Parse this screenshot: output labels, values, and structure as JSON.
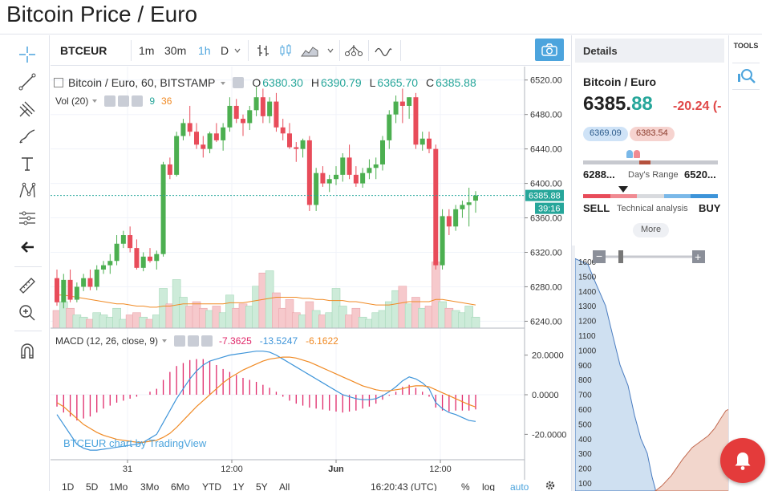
{
  "page": {
    "title": "Bitcoin Price / Euro"
  },
  "left_toolbar": {
    "icons": [
      "crosshair-icon",
      "trend-line-icon",
      "pitchfork-icon",
      "brush-icon",
      "text-icon",
      "pattern-icon",
      "measure-icon",
      "back-arrow-icon",
      "ruler-icon",
      "zoom-icon",
      "magnet-icon"
    ]
  },
  "toolbar": {
    "symbol": "BTCEUR",
    "intervals": [
      "1m",
      "30m",
      "1h",
      "D"
    ],
    "active_interval": "1h",
    "accent": "#4ca4dd"
  },
  "legend": {
    "title": "Bitcoin / Euro, 60, BITSTAMP",
    "o_label": "O",
    "o_value": "6380.30",
    "h_label": "H",
    "h_value": "6390.79",
    "l_label": "L",
    "l_value": "6365.70",
    "c_label": "C",
    "c_value": "6385.88",
    "vol_label": "Vol (20)",
    "vol_a": "9",
    "vol_b": "36",
    "macd_label": "MACD (12, 26, close, 9)",
    "macd_hist": "-7.3625",
    "macd_line": "-13.5247",
    "macd_signal": "-6.1622"
  },
  "price_axis": {
    "ticks": [
      "6520.00",
      "6480.00",
      "6440.00",
      "6400.00",
      "6360.00",
      "6320.00",
      "6280.00",
      "6240.00"
    ],
    "last_price": "6385.88",
    "countdown": "39:16",
    "macd_ticks": [
      "20.0000",
      "0.0000",
      "-20.0000"
    ]
  },
  "time_axis": {
    "labels": [
      "31",
      "12:00",
      "Jun",
      "12:00"
    ]
  },
  "watermark": "BTCEUR chart by TradingView",
  "range_bar": {
    "items": [
      "1D",
      "5D",
      "1Mo",
      "3Mo",
      "6Mo",
      "YTD",
      "1Y",
      "5Y",
      "All"
    ],
    "time": "16:20:43 (UTC)",
    "percent": "%",
    "log": "log",
    "auto": "auto"
  },
  "chart_data": {
    "type": "candlestick",
    "title": "Bitcoin / Euro, 60, BITSTAMP",
    "ylim": [
      6232,
      6530
    ],
    "up_color": "#4caf50",
    "down_color": "#e84c5a",
    "candles": [
      [
        6290,
        6300,
        6258,
        6262
      ],
      [
        6262,
        6295,
        6255,
        6288
      ],
      [
        6288,
        6300,
        6262,
        6265
      ],
      [
        6265,
        6285,
        6262,
        6280
      ],
      [
        6280,
        6295,
        6275,
        6290
      ],
      [
        6290,
        6300,
        6276,
        6280
      ],
      [
        6280,
        6305,
        6276,
        6300
      ],
      [
        6300,
        6310,
        6295,
        6305
      ],
      [
        6305,
        6318,
        6295,
        6310
      ],
      [
        6310,
        6340,
        6305,
        6330
      ],
      [
        6330,
        6345,
        6325,
        6340
      ],
      [
        6340,
        6350,
        6320,
        6325
      ],
      [
        6325,
        6335,
        6300,
        6302
      ],
      [
        6302,
        6320,
        6298,
        6315
      ],
      [
        6315,
        6325,
        6308,
        6310
      ],
      [
        6310,
        6322,
        6300,
        6318
      ],
      [
        6318,
        6425,
        6315,
        6422
      ],
      [
        6422,
        6430,
        6405,
        6410
      ],
      [
        6410,
        6460,
        6408,
        6455
      ],
      [
        6455,
        6475,
        6450,
        6470
      ],
      [
        6470,
        6490,
        6455,
        6460
      ],
      [
        6460,
        6470,
        6440,
        6445
      ],
      [
        6445,
        6455,
        6430,
        6440
      ],
      [
        6440,
        6460,
        6435,
        6458
      ],
      [
        6458,
        6470,
        6448,
        6450
      ],
      [
        6450,
        6470,
        6438,
        6465
      ],
      [
        6465,
        6500,
        6460,
        6490
      ],
      [
        6490,
        6498,
        6470,
        6475
      ],
      [
        6475,
        6480,
        6455,
        6470
      ],
      [
        6470,
        6490,
        6462,
        6485
      ],
      [
        6485,
        6512,
        6478,
        6500
      ],
      [
        6500,
        6510,
        6470,
        6478
      ],
      [
        6478,
        6500,
        6470,
        6495
      ],
      [
        6495,
        6505,
        6460,
        6465
      ],
      [
        6465,
        6475,
        6450,
        6458
      ],
      [
        6458,
        6470,
        6440,
        6442
      ],
      [
        6442,
        6448,
        6425,
        6440
      ],
      [
        6440,
        6452,
        6430,
        6450
      ],
      [
        6450,
        6455,
        6368,
        6375
      ],
      [
        6375,
        6418,
        6368,
        6412
      ],
      [
        6412,
        6420,
        6396,
        6400
      ],
      [
        6400,
        6410,
        6390,
        6405
      ],
      [
        6405,
        6420,
        6398,
        6410
      ],
      [
        6410,
        6435,
        6402,
        6430
      ],
      [
        6430,
        6445,
        6405,
        6410
      ],
      [
        6410,
        6420,
        6396,
        6400
      ],
      [
        6400,
        6418,
        6395,
        6412
      ],
      [
        6412,
        6428,
        6405,
        6418
      ],
      [
        6418,
        6430,
        6405,
        6422
      ],
      [
        6422,
        6455,
        6415,
        6450
      ],
      [
        6450,
        6485,
        6440,
        6480
      ],
      [
        6480,
        6502,
        6470,
        6495
      ],
      [
        6495,
        6510,
        6470,
        6490
      ],
      [
        6490,
        6500,
        6475,
        6500
      ],
      [
        6500,
        6505,
        6440,
        6445
      ],
      [
        6445,
        6460,
        6438,
        6452
      ],
      [
        6452,
        6460,
        6435,
        6440
      ],
      [
        6440,
        6445,
        6300,
        6305
      ],
      [
        6305,
        6370,
        6300,
        6362
      ],
      [
        6362,
        6370,
        6340,
        6350
      ],
      [
        6350,
        6375,
        6345,
        6370
      ],
      [
        6370,
        6380,
        6360,
        6375
      ],
      [
        6375,
        6395,
        6350,
        6378
      ],
      [
        6380,
        6391,
        6366,
        6386
      ]
    ],
    "volume": [
      8,
      12,
      9,
      6,
      5,
      4,
      7,
      6,
      5,
      9,
      4,
      6,
      7,
      5,
      4,
      6,
      18,
      11,
      22,
      14,
      10,
      12,
      9,
      8,
      10,
      7,
      15,
      9,
      11,
      10,
      19,
      25,
      26,
      16,
      9,
      13,
      7,
      6,
      12,
      8,
      6,
      7,
      18,
      10,
      6,
      9,
      5,
      4,
      7,
      8,
      12,
      17,
      19,
      11,
      14,
      9,
      10,
      30,
      12,
      9,
      8,
      7,
      10,
      5
    ],
    "vol_ma": [
      15,
      15,
      14.5,
      14,
      13.5,
      13,
      12.5,
      12,
      11.5,
      11,
      11,
      10.5,
      10,
      10,
      9.5,
      9.5,
      10,
      10,
      10.5,
      11,
      11,
      11,
      11,
      11,
      11,
      11,
      11.5,
      11.5,
      11.5,
      12,
      12.5,
      13,
      13.5,
      14,
      14,
      14,
      14,
      13.5,
      13.5,
      13,
      13,
      12.5,
      12.5,
      12.5,
      12,
      12,
      11.5,
      11,
      10.5,
      10.5,
      10.5,
      11,
      11.5,
      12,
      12,
      12,
      12,
      13,
      13,
      12.5,
      12,
      11.5,
      11,
      10.5
    ],
    "macd_ylim": [
      -32,
      32
    ],
    "macd": [
      -10,
      -15,
      -20,
      -25,
      -27,
      -28,
      -28,
      -27.5,
      -27,
      -26.5,
      -26,
      -25.5,
      -25,
      -24,
      -22,
      -20,
      -14,
      -8,
      -2,
      3,
      8,
      12,
      15,
      17,
      18,
      19,
      20,
      20.5,
      21,
      21.5,
      22,
      22,
      21.5,
      20,
      18,
      16,
      14,
      12,
      10,
      8,
      6,
      4,
      2,
      0,
      -1,
      -2,
      -2.5,
      -2.5,
      -2,
      -0.5,
      1.5,
      4,
      7,
      9,
      8,
      6,
      3,
      -4,
      -7,
      -9,
      -10,
      -11.5,
      -13,
      -13.5
    ],
    "signal": [
      -4,
      -6,
      -9,
      -12,
      -15,
      -17,
      -19,
      -20.5,
      -21.5,
      -22.5,
      -23,
      -23.5,
      -24,
      -24,
      -23.5,
      -23,
      -21.5,
      -19.5,
      -16.5,
      -13,
      -9.5,
      -6,
      -3,
      0,
      3,
      6,
      8.5,
      10.5,
      12.5,
      14,
      15.5,
      17,
      18,
      18.5,
      19,
      19,
      18.5,
      17.5,
      16.5,
      15,
      13.5,
      12,
      10.5,
      9,
      7.5,
      6,
      4.5,
      3.5,
      2.5,
      2,
      2,
      2.5,
      3,
      4,
      4.5,
      4.5,
      4,
      2.5,
      1,
      -0.5,
      -2,
      -3.5,
      -5,
      -6.2
    ],
    "hist": [
      -6,
      -9,
      -11,
      -13,
      -12,
      -11,
      -9,
      -7,
      -5.5,
      -4,
      -3,
      -2,
      -1,
      0,
      1.5,
      3,
      7.5,
      11.5,
      14.5,
      16,
      17.5,
      18,
      18,
      17,
      15,
      13,
      11.5,
      10,
      8.5,
      7.5,
      6.5,
      5,
      3.5,
      1.5,
      -1,
      -3,
      -4.5,
      -5.5,
      -6.5,
      -7,
      -7.5,
      -8,
      -8.5,
      -9,
      -8.5,
      -8,
      -7,
      -6,
      -4.5,
      -2.5,
      -0.5,
      1.5,
      4,
      5,
      3.5,
      1.5,
      -1,
      -6.5,
      -8,
      -8.5,
      -8,
      -8,
      -8,
      -7.4
    ]
  },
  "details": {
    "header": "Details",
    "pair": "Bitcoin / Euro",
    "price_int": "6385.",
    "price_dec": "88",
    "change": "-20.24 (-",
    "bid": "6369.09",
    "ask": "6383.54",
    "day_low": "6288...",
    "day_range_label": "Day's Range",
    "day_high": "6520...",
    "sell": "SELL",
    "ta_label": "Technical analysis",
    "buy": "BUY",
    "more": "More",
    "ta_colors": [
      "#e84c5a",
      "#f08a92",
      "#d8dade",
      "#7ab8e8",
      "#3d94d9"
    ]
  },
  "depth": {
    "minus": "−",
    "plus": "+",
    "axis_ticks": [
      "1600",
      "1500",
      "1400",
      "1300",
      "1200",
      "1100",
      "1000",
      "900",
      "800",
      "700",
      "600",
      "500",
      "400",
      "300",
      "200",
      "100"
    ],
    "bid_color": "#cfe0f1",
    "ask_color": "#f2d6cc"
  },
  "tools": {
    "label": "TOOLS"
  },
  "alert": {
    "icon": "bell-icon"
  }
}
